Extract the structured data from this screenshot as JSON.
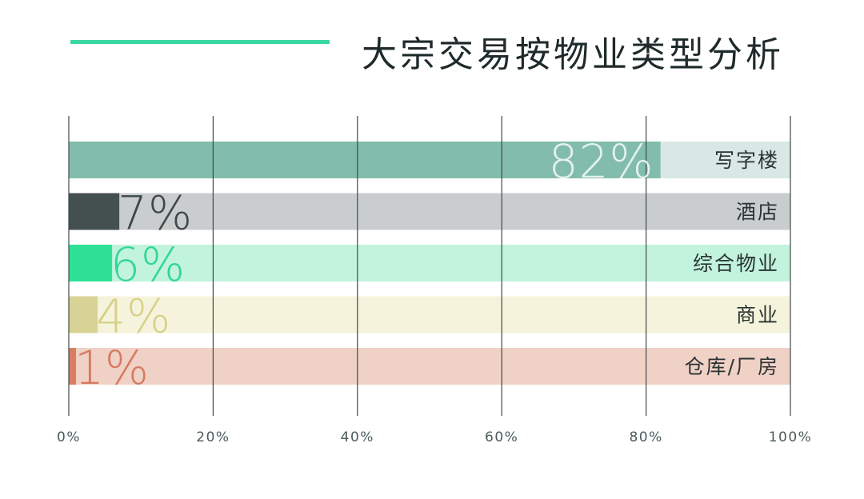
{
  "header": {
    "accent_color": "#3cd6a4"
  },
  "chart_data": {
    "type": "bar",
    "orientation": "horizontal",
    "stacked_to_100": true,
    "title": "大宗交易按物业类型分析",
    "xlabel": "",
    "ylabel": "",
    "xlim": [
      0,
      100
    ],
    "x_ticks": [
      "0%",
      "20%",
      "40%",
      "60%",
      "80%",
      "100%"
    ],
    "grid": "vertical",
    "legend": "none",
    "categories": [
      "写字楼",
      "酒店",
      "综合物业",
      "商业",
      "仓库/厂房"
    ],
    "values": [
      82,
      7,
      6,
      4,
      1
    ],
    "value_labels": [
      "82%",
      "7%",
      "6%",
      "4%",
      "1%"
    ],
    "bar_colors": [
      "#82bcad",
      "#44504f",
      "#2ee096",
      "#d8d394",
      "#da7e62"
    ],
    "track_colors": [
      "#d9e8e4",
      "#c9cdcd",
      "#c2f3dc",
      "#f6f3dc",
      "#f0d1c6"
    ],
    "label_colors": [
      "#e6f1ee",
      "#3e4847",
      "#2fd794",
      "#d6d088",
      "#d67a60"
    ]
  }
}
